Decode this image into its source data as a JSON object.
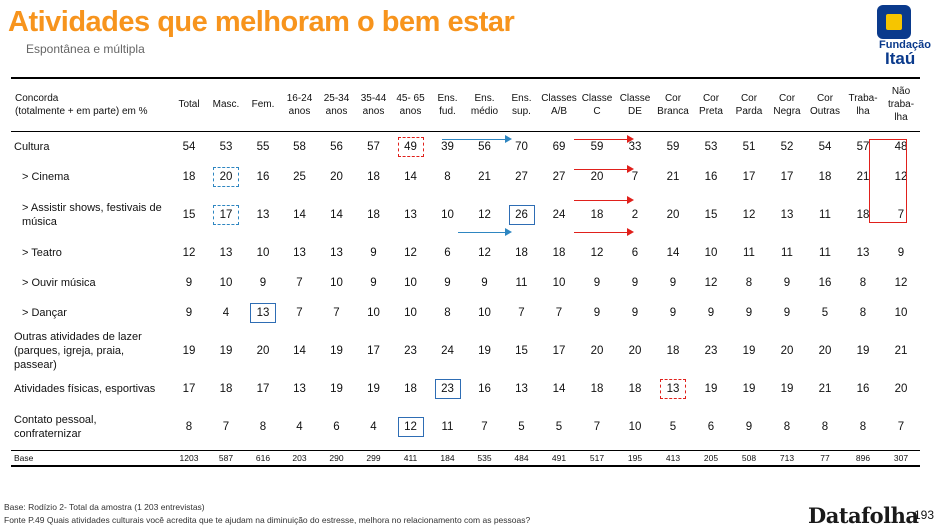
{
  "title": "Atividades que melhoram o bem estar",
  "subtitle": "Espontânea e múltipla",
  "logo": {
    "line1": "Fundação",
    "line2": "Itaú"
  },
  "table": {
    "headers": [
      [
        "Concorda",
        "(totalmente + em parte) em %"
      ],
      [
        "Total"
      ],
      [
        "Masc."
      ],
      [
        "Fem."
      ],
      [
        "16-24",
        "anos"
      ],
      [
        "25-34",
        "anos"
      ],
      [
        "35-44",
        "anos"
      ],
      [
        "45- 65",
        "anos"
      ],
      [
        "Ens.",
        "fud."
      ],
      [
        "Ens.",
        "médio"
      ],
      [
        "Ens.",
        "sup."
      ],
      [
        "Classes",
        "A/B"
      ],
      [
        "Classe",
        "C"
      ],
      [
        "Classe",
        "DE"
      ],
      [
        "Cor",
        "Branca"
      ],
      [
        "Cor",
        "Preta"
      ],
      [
        "Cor",
        "Parda"
      ],
      [
        "Cor",
        "Negra"
      ],
      [
        "Cor",
        "Outras"
      ],
      [
        "Traba-",
        "lha"
      ],
      [
        "Não",
        "traba-",
        "lha"
      ]
    ],
    "rows": [
      {
        "label": [
          "Cultura"
        ],
        "sub": false,
        "values": [
          "54",
          "53",
          "55",
          "58",
          "56",
          "57",
          "49",
          "39",
          "56",
          "70",
          "69",
          "59",
          "33",
          "59",
          "53",
          "51",
          "52",
          "54",
          "57",
          "48"
        ]
      },
      {
        "label": [
          "> Cinema"
        ],
        "sub": true,
        "values": [
          "18",
          "20",
          "16",
          "25",
          "20",
          "18",
          "14",
          "8",
          "21",
          "27",
          "27",
          "20",
          "7",
          "21",
          "16",
          "17",
          "17",
          "18",
          "21",
          "12"
        ]
      },
      {
        "label": [
          "> Assistir shows, festivais de",
          "música"
        ],
        "sub": true,
        "values": [
          "15",
          "17",
          "13",
          "14",
          "14",
          "18",
          "13",
          "10",
          "12",
          "26",
          "24",
          "18",
          "2",
          "20",
          "15",
          "12",
          "13",
          "11",
          "18",
          "7"
        ]
      },
      {
        "label": [
          "> Teatro"
        ],
        "sub": true,
        "values": [
          "12",
          "13",
          "10",
          "13",
          "13",
          "9",
          "12",
          "6",
          "12",
          "18",
          "18",
          "12",
          "6",
          "14",
          "10",
          "11",
          "11",
          "11",
          "13",
          "9"
        ]
      },
      {
        "label": [
          "> Ouvir música"
        ],
        "sub": true,
        "values": [
          "9",
          "10",
          "9",
          "7",
          "10",
          "9",
          "10",
          "9",
          "9",
          "11",
          "10",
          "9",
          "9",
          "9",
          "12",
          "8",
          "9",
          "16",
          "8",
          "12"
        ]
      },
      {
        "label": [
          "> Dançar"
        ],
        "sub": true,
        "values": [
          "9",
          "4",
          "13",
          "7",
          "7",
          "10",
          "10",
          "8",
          "10",
          "7",
          "7",
          "9",
          "9",
          "9",
          "9",
          "9",
          "9",
          "5",
          "8",
          "10"
        ]
      },
      {
        "label": [
          "Outras atividades de lazer",
          "(parques, igreja, praia,",
          "passear)"
        ],
        "sub": false,
        "values": [
          "19",
          "19",
          "20",
          "14",
          "19",
          "17",
          "23",
          "24",
          "19",
          "15",
          "17",
          "20",
          "20",
          "18",
          "23",
          "19",
          "20",
          "20",
          "19",
          "21"
        ]
      },
      {
        "label": [
          "Atividades físicas, esportivas"
        ],
        "sub": false,
        "values": [
          "17",
          "18",
          "17",
          "13",
          "19",
          "19",
          "18",
          "23",
          "16",
          "13",
          "14",
          "18",
          "18",
          "13",
          "19",
          "19",
          "19",
          "21",
          "16",
          "20"
        ]
      },
      {
        "label": [
          "Contato pessoal,",
          "confraternizar"
        ],
        "sub": false,
        "values": [
          "8",
          "7",
          "8",
          "4",
          "6",
          "4",
          "12",
          "11",
          "7",
          "5",
          "5",
          "7",
          "10",
          "5",
          "6",
          "9",
          "8",
          "8",
          "8",
          "7"
        ]
      }
    ],
    "base": {
      "label": "Base",
      "values": [
        "1203",
        "587",
        "616",
        "203",
        "290",
        "299",
        "411",
        "184",
        "535",
        "484",
        "491",
        "517",
        "195",
        "413",
        "205",
        "508",
        "713",
        "77",
        "896",
        "307"
      ]
    }
  },
  "highlight_colors": {
    "blue": "#2e86c1",
    "red": "#e0201b"
  },
  "footnotes": [
    "Base: Rodízio 2- Total da amostra (1 203 entrevistas)",
    "Fonte P.49 Quais atividades culturais você acredita que te ajudam na diminuição do estresse, melhora no relacionamento com as pessoas?"
  ],
  "brand": "Datafolha",
  "page_number": "193"
}
